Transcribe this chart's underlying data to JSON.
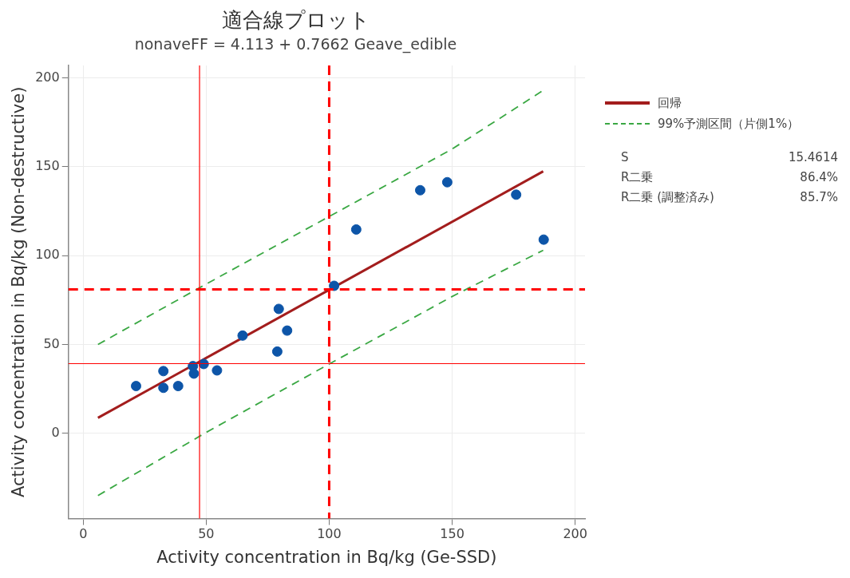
{
  "chart_data": {
    "type": "scatter",
    "title": "適合線プロット",
    "subtitle": "nonaveFF = 4.113 + 0.7662 Geave_edible",
    "xlabel": "Activity concentration in Bq/kg (Ge-SSD)",
    "ylabel": "Activity concentration in Bq/kg (Non-destructive)",
    "xlim": [
      -6,
      204
    ],
    "ylim": [
      -48,
      207
    ],
    "xticks": [
      0,
      50,
      100,
      150,
      200
    ],
    "yticks": [
      0,
      50,
      100,
      150,
      200
    ],
    "grid": true,
    "legend": "right",
    "marker": "circle",
    "series": [
      {
        "type": "scatter",
        "color": "#0d55a8",
        "x": [
          21.5,
          32.6,
          32.6,
          38.6,
          44.6,
          45,
          49,
          54.4,
          64.8,
          78.9,
          79.5,
          82.9,
          102,
          111,
          137,
          148,
          176,
          187.2
        ],
        "values": [
          26.6,
          35,
          25.6,
          26.6,
          37.8,
          33.6,
          39,
          35.4,
          55,
          46,
          70,
          57.8,
          83,
          114.7,
          136.8,
          141.3,
          134.3,
          109
        ]
      },
      {
        "type": "line",
        "name": "回帰",
        "color": "#a31d1d",
        "line_style": "solid",
        "marker": "none",
        "x": [
          6,
          187
        ],
        "values": [
          8.7,
          147.4
        ]
      },
      {
        "type": "line",
        "name": "99%予測区間（片側1%）",
        "color": "#3aa843",
        "line_style": "dashed",
        "marker": "none",
        "x": [
          6,
          50,
          100,
          150,
          187
        ],
        "values": [
          50,
          84,
          122,
          160,
          193
        ]
      },
      {
        "type": "line",
        "color": "#3aa843",
        "line_style": "dashed",
        "marker": "none",
        "x": [
          6,
          50,
          100,
          150,
          187
        ],
        "values": [
          -35,
          0.5,
          39,
          77,
          103
        ]
      }
    ],
    "ref_lines": [
      {
        "axis": "x",
        "value": 47.3,
        "color": "#ff0000",
        "line_style": "solid"
      },
      {
        "axis": "x",
        "value": 100,
        "color": "#ff0000",
        "line_style": "dashed"
      },
      {
        "axis": "y",
        "value": 39.2,
        "color": "#ff0000",
        "line_style": "solid"
      },
      {
        "axis": "y",
        "value": 81,
        "color": "#ff0000",
        "line_style": "dashed"
      }
    ],
    "annotations": [
      "S",
      "15.4614",
      "R二乗",
      "86.4%",
      "R二乗 (調整済み)",
      "85.7%"
    ]
  }
}
